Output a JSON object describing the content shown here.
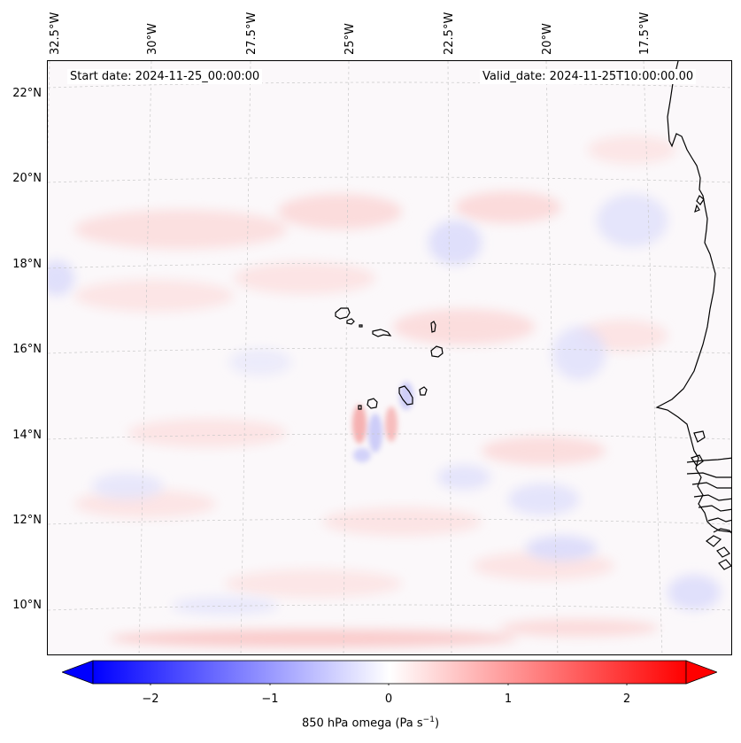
{
  "map": {
    "start_date": "Start date: 2024-11-25_00:00:00",
    "valid_date": "Valid_date: 2024-11-25T10:00:00.00",
    "longitude_labels": [
      "32.5°W",
      "30°W",
      "27.5°W",
      "25°W",
      "22.5°W",
      "20°W",
      "17.5°W"
    ],
    "latitude_labels": [
      "22°N",
      "20°N",
      "18°N",
      "16°N",
      "14°N",
      "12°N",
      "10°N"
    ],
    "field": "850 hPa omega",
    "colormap": "bwr",
    "colors": {
      "negative": "#0000ff",
      "zero": "#ffffff",
      "positive": "#ff0000",
      "coast": "#000000",
      "grid": "#c8c8c8"
    }
  },
  "colorbar": {
    "label_text": "850 hPa omega (Pa s",
    "label_exponent": "−1",
    "label_close": ")",
    "ticks": [
      "−2",
      "−1",
      "0",
      "1",
      "2"
    ],
    "tick_values": [
      -2,
      -1,
      0,
      1,
      2
    ],
    "range": [
      -2.5,
      2.5
    ],
    "extend": "both"
  }
}
